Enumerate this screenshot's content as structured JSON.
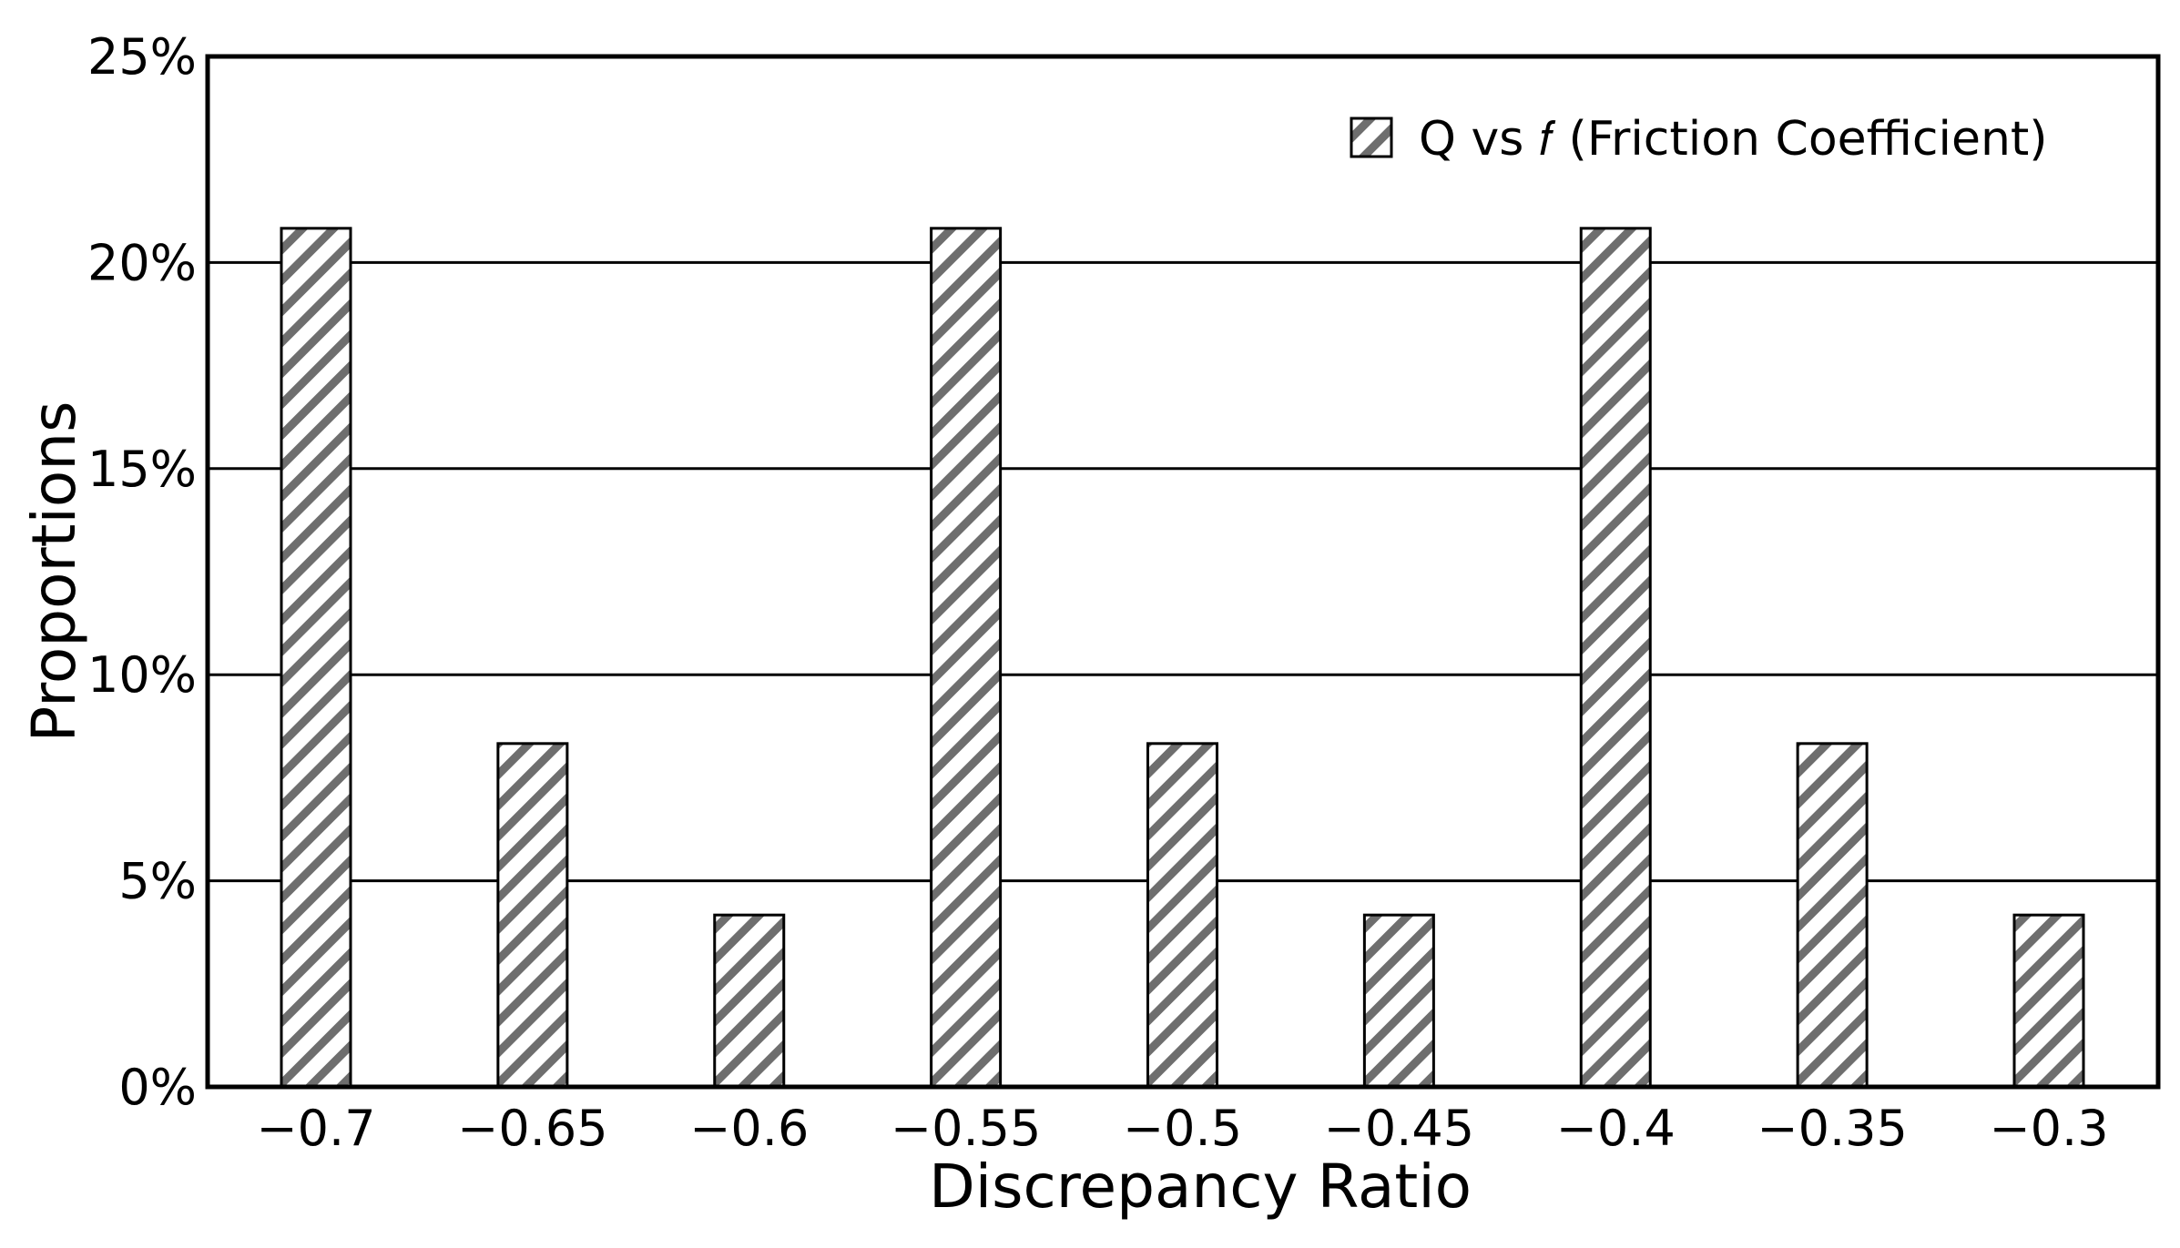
{
  "chart_data": {
    "type": "bar",
    "categories": [
      "−0.7",
      "−0.65",
      "−0.6",
      "−0.55",
      "−0.5",
      "−0.45",
      "−0.4",
      "−0.35",
      "−0.3"
    ],
    "series": [
      {
        "name": "Q vs 𝑓 (Friction Coefficient)",
        "values": [
          20.83,
          8.33,
          4.17,
          20.83,
          8.33,
          4.17,
          20.83,
          8.33,
          4.17
        ]
      }
    ],
    "yticks": [
      "0%",
      "5%",
      "10%",
      "15%",
      "20%",
      "25%"
    ],
    "ytick_values": [
      0,
      5,
      10,
      15,
      20,
      25
    ],
    "ylim": [
      0,
      25
    ],
    "xlabel": "Discrepancy Ratio",
    "ylabel": "Proportions",
    "legend_position": "top-right",
    "grid": "horizontal",
    "bar_pattern": "diagonal-hatch",
    "colors": {
      "bar_fill": "#ffffff",
      "hatch": "#6e6e6e",
      "outline": "#000000"
    }
  }
}
